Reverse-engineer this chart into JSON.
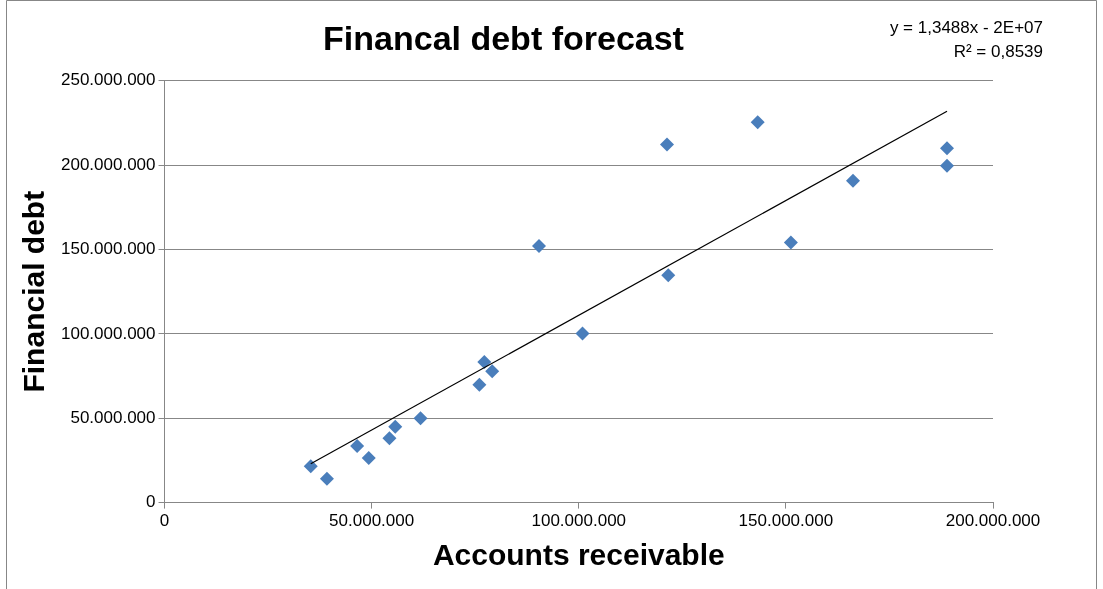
{
  "chart_data": {
    "type": "scatter",
    "title": "Financal debt forecast",
    "xlabel": "Accounts receivable",
    "ylabel": "Financial debt",
    "annotations": [
      "y = 1,3488x - 2E+07",
      "R² = 0,8539"
    ],
    "series": [
      {
        "color": "#4a7ebb",
        "x": [
          35300000,
          39200000,
          46500000,
          49300000,
          54300000,
          55700000,
          61800000,
          76000000,
          77200000,
          79100000,
          90400000,
          100900000,
          121300000,
          121600000,
          143200000,
          151200000,
          166200000,
          188900000,
          188900000
        ],
        "values": [
          21500000,
          14200000,
          33500000,
          26400000,
          38200000,
          45000000,
          50000000,
          69800000,
          83300000,
          77900000,
          152100000,
          100200000,
          212200000,
          134700000,
          225500000,
          154100000,
          190700000,
          210000000,
          199700000
        ]
      },
      {
        "type": "line",
        "color": "#000000",
        "marker": "none",
        "x": [
          35300000,
          188900000
        ],
        "values": [
          23000000,
          232000000
        ]
      }
    ],
    "xlim": [
      0,
      200000000
    ],
    "xticks": [
      0,
      {
        "value": 50000000,
        "label": "50.000.000"
      },
      {
        "value": 100000000,
        "label": "100.000.000"
      },
      {
        "value": 150000000,
        "label": "150.000.000"
      },
      {
        "value": 200000000,
        "label": "200.000.000"
      }
    ],
    "ylim": [
      0,
      250000000
    ],
    "yticks": [
      0,
      {
        "value": 50000000,
        "label": "50.000.000"
      },
      {
        "value": 100000000,
        "label": "100.000.000"
      },
      {
        "value": 150000000,
        "label": "150.000.000"
      },
      {
        "value": 200000000,
        "label": "200.000.000"
      },
      {
        "value": 250000000,
        "label": "250.000.000"
      }
    ],
    "grid": "y",
    "legend": false,
    "marker": "diamond"
  }
}
